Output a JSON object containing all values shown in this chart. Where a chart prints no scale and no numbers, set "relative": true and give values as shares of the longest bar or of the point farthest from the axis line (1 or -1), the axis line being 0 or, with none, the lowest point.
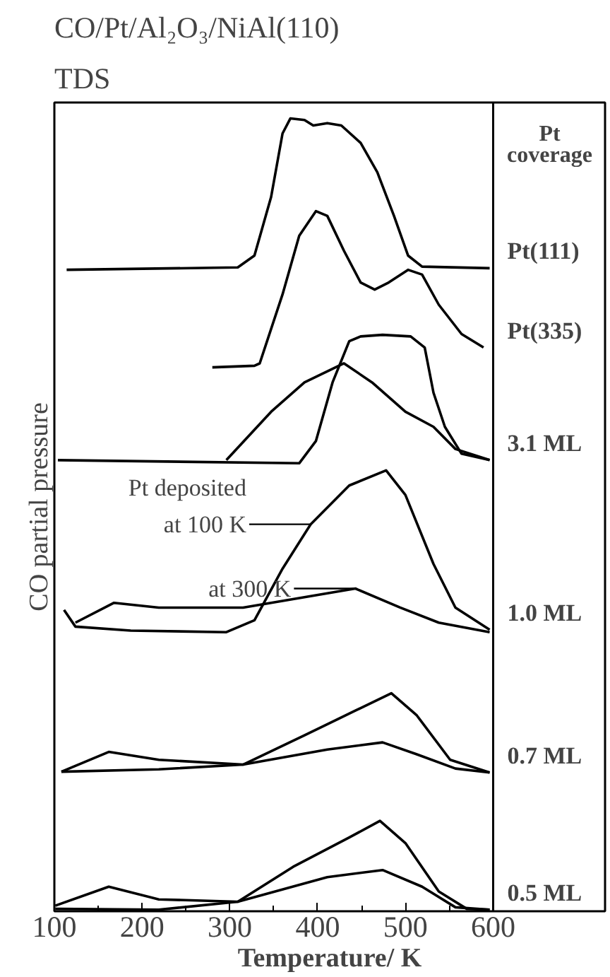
{
  "chart_data": {
    "type": "line",
    "title": "CO/Pt/Al₂O₃/NiAl(110)",
    "subtitle": "TDS",
    "xlabel": "Temperature/ K",
    "ylabel": "CO partial pressure",
    "legend_title": "Pt coverage",
    "relative": true,
    "xlim": [
      100,
      600
    ],
    "xticks": [
      100,
      200,
      300,
      400,
      500,
      600
    ],
    "grid": false,
    "marker": "none",
    "line_style": "solid",
    "annotations": [
      "Pt deposited",
      {
        "text": "at 100 K",
        "x": 392,
        "y": 0.488
      },
      {
        "text": "at 300 K",
        "x": 443,
        "y": 0.407
      }
    ],
    "series": [
      {
        "name": "Pt(111)",
        "color": "#000000",
        "x": [
          114,
          309,
          328,
          347,
          360,
          369,
          385,
          395,
          411,
          427,
          449,
          468,
          487,
          503,
          519,
          596
        ],
        "values": [
          0.809,
          0.812,
          0.827,
          0.901,
          0.981,
          1.0,
          0.998,
          0.991,
          0.994,
          0.991,
          0.969,
          0.932,
          0.877,
          0.827,
          0.813,
          0.811
        ]
      },
      {
        "name": "Pt(335)",
        "color": "#000000",
        "x": [
          280,
          328,
          334,
          360,
          379,
          398,
          411,
          430,
          449,
          465,
          481,
          503,
          519,
          538,
          564,
          589
        ],
        "values": [
          0.686,
          0.688,
          0.691,
          0.778,
          0.852,
          0.883,
          0.877,
          0.833,
          0.793,
          0.784,
          0.793,
          0.809,
          0.803,
          0.765,
          0.728,
          0.711
        ]
      },
      {
        "name": "3.1 ML",
        "color": "#000000",
        "x": [
          104,
          379,
          398,
          417,
          436,
          449,
          474,
          506,
          522,
          532,
          545,
          564,
          596
        ],
        "values": [
          0.569,
          0.565,
          0.593,
          0.667,
          0.719,
          0.725,
          0.727,
          0.725,
          0.711,
          0.654,
          0.611,
          0.577,
          0.569
        ]
      },
      {
        "color": "#000000",
        "x": [
          296,
          347,
          385,
          430,
          462,
          500,
          532,
          557,
          596
        ],
        "values": [
          0.569,
          0.63,
          0.667,
          0.691,
          0.667,
          0.63,
          0.611,
          0.583,
          0.569
        ]
      },
      {
        "name": "1.0 ML",
        "color": "#000000",
        "x": [
          111,
          124,
          187,
          296,
          328,
          360,
          392,
          436,
          478,
          500,
          532,
          557,
          596
        ],
        "values": [
          0.38,
          0.359,
          0.354,
          0.352,
          0.367,
          0.432,
          0.488,
          0.537,
          0.556,
          0.525,
          0.438,
          0.383,
          0.355
        ]
      },
      {
        "color": "#000000",
        "x": [
          124,
          168,
          219,
          315,
          379,
          443,
          494,
          538,
          596
        ],
        "values": [
          0.364,
          0.389,
          0.383,
          0.383,
          0.395,
          0.407,
          0.383,
          0.364,
          0.352
        ]
      },
      {
        "name": "0.7 ML",
        "color": "#000000",
        "x": [
          108,
          219,
          315,
          385,
          443,
          484,
          513,
          551,
          596
        ],
        "values": [
          0.176,
          0.179,
          0.185,
          0.222,
          0.253,
          0.275,
          0.247,
          0.191,
          0.175
        ]
      },
      {
        "color": "#000000",
        "x": [
          108,
          162,
          219,
          315,
          411,
          474,
          513,
          557,
          596
        ],
        "values": [
          0.176,
          0.201,
          0.191,
          0.185,
          0.204,
          0.213,
          0.198,
          0.18,
          0.175
        ]
      },
      {
        "name": "0.5 ML",
        "color": "#000000",
        "x": [
          101,
          219,
          309,
          372,
          436,
          471,
          500,
          538,
          570,
          596
        ],
        "values": [
          0.003,
          0.002,
          0.012,
          0.056,
          0.093,
          0.114,
          0.086,
          0.025,
          0.003,
          0.002
        ]
      },
      {
        "color": "#000000",
        "x": [
          101,
          162,
          219,
          309,
          411,
          474,
          519,
          557,
          596
        ],
        "values": [
          0.007,
          0.031,
          0.015,
          0.012,
          0.043,
          0.052,
          0.031,
          0.005,
          0.002
        ]
      }
    ]
  }
}
